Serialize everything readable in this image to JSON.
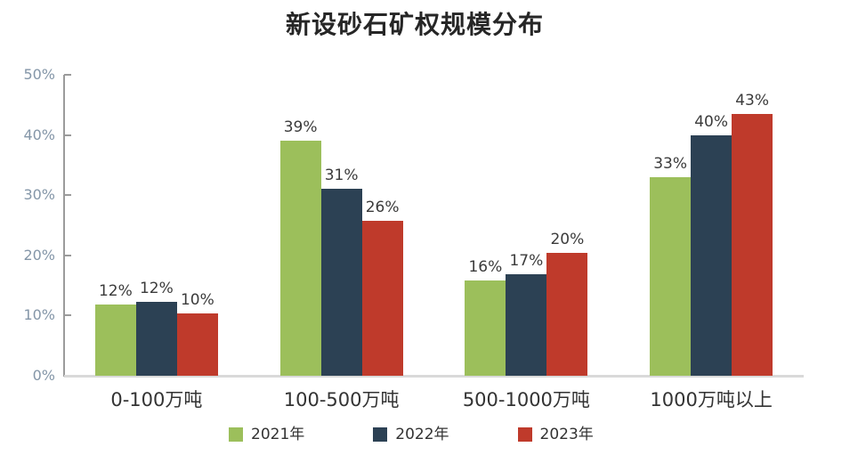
{
  "chart_data": {
    "type": "bar",
    "title": "新设砂石矿权规模分布",
    "categories": [
      "0-100万吨",
      "100-500万吨",
      "500-1000万吨",
      "1000万吨以上"
    ],
    "series": [
      {
        "name": "2021年",
        "color": "#9CBF5B",
        "values": [
          12,
          39,
          16,
          33
        ],
        "labels": [
          "12%",
          "39%",
          "16%",
          "33%"
        ],
        "bar_heights_pct": [
          11.9,
          39.0,
          15.9,
          33.0
        ]
      },
      {
        "name": "2022年",
        "color": "#2C4154",
        "values": [
          12,
          31,
          17,
          40
        ],
        "labels": [
          "12%",
          "31%",
          "17%",
          "40%"
        ],
        "bar_heights_pct": [
          12.3,
          31.0,
          16.8,
          40.0
        ]
      },
      {
        "name": "2023年",
        "color": "#BF3A2B",
        "values": [
          10,
          26,
          20,
          43
        ],
        "labels": [
          "10%",
          "26%",
          "20%",
          "43%"
        ],
        "bar_heights_pct": [
          10.4,
          25.7,
          20.4,
          43.5
        ]
      }
    ],
    "xlabel": "",
    "ylabel": "",
    "ylim": [
      0,
      50
    ],
    "yticks": [
      "0%",
      "10%",
      "20%",
      "30%",
      "40%",
      "50%"
    ],
    "grid": false,
    "legend_position": "bottom",
    "colors": {
      "title": "#262626",
      "axis_line": "#9B9B9B",
      "baseline": "#D9D9D9",
      "tick_label": "#8496A8",
      "data_label": "#3B3B3B",
      "category_label": "#333333",
      "legend_label": "#333333"
    }
  }
}
